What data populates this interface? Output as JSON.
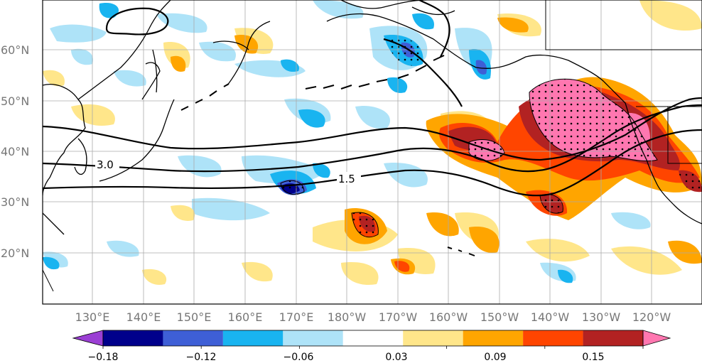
{
  "map": {
    "lat_labels": [
      "60°N",
      "50°N",
      "40°N",
      "30°N",
      "20°N"
    ],
    "lon_labels": [
      "130°E",
      "140°E",
      "150°E",
      "160°E",
      "170°E",
      "180°W",
      "170°W",
      "160°W",
      "150°W",
      "140°W",
      "130°W",
      "120°W"
    ],
    "contour_labels": [
      "3.0",
      "1.5"
    ]
  },
  "colorbar": {
    "tick_labels": [
      "−0.18",
      "−0.12",
      "−0.06",
      "0.03",
      "0.09",
      "0.15"
    ],
    "colors": [
      "#9b3fd4",
      "#00008b",
      "#3e5fd6",
      "#19b4f0",
      "#aee3f8",
      "#ffffff",
      "#ffe68a",
      "#ffa500",
      "#ff4500",
      "#b22222",
      "#ff77b0"
    ]
  }
}
